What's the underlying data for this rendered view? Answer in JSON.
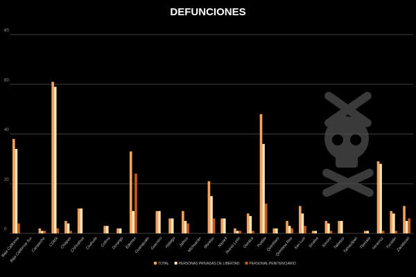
{
  "chart_data": {
    "type": "bar",
    "title": "DEFUNCIONES",
    "categories": [
      "Baja California",
      "Baja California Sur",
      "Campeche",
      "CDMX",
      "Chiapas",
      "Chihuahua",
      "Coahuila",
      "Colima",
      "Durango",
      "Edomex",
      "Guanajuato",
      "Guerrero",
      "Hidalgo",
      "Jalisco",
      "Michoacán",
      "Morelos",
      "Nayarit",
      "Nuevo León",
      "Oaxaca",
      "Puebla",
      "Querétaro",
      "Quintana Roo",
      "San Luis",
      "Sinaloa",
      "Sonora",
      "Tabasco",
      "Tamaulipas",
      "Tlaxcala",
      "Veracruz",
      "Yucatán",
      "Zacatecas"
    ],
    "series": [
      {
        "name": "TOTAL",
        "color": "#f5a25d",
        "values": [
          38,
          0,
          2,
          61,
          5,
          10,
          0,
          3,
          2,
          33,
          0,
          9,
          6,
          9,
          0,
          21,
          6,
          2,
          8,
          48,
          2,
          5,
          11,
          1,
          5,
          5,
          0,
          1,
          29,
          9,
          11
        ]
      },
      {
        "name": "PERSONAS PRIVADAS DE LIBERTAD",
        "color": "#ffe6b8",
        "values": [
          34,
          0,
          1,
          59,
          4,
          10,
          0,
          3,
          2,
          9,
          0,
          9,
          6,
          5,
          0,
          15,
          6,
          1,
          7,
          36,
          2,
          3,
          8,
          1,
          4,
          5,
          0,
          1,
          28,
          8,
          5
        ]
      },
      {
        "name": "PERSONAL PENITENCIARIO",
        "color": "#c75a1e",
        "values": [
          4,
          0,
          1,
          2,
          1,
          0,
          0,
          0,
          0,
          24,
          0,
          0,
          0,
          4,
          0,
          6,
          0,
          1,
          1,
          12,
          0,
          2,
          3,
          0,
          1,
          0,
          0,
          0,
          1,
          1,
          6
        ]
      }
    ],
    "ylim": [
      0,
      80
    ],
    "yticks": [
      0,
      20,
      40,
      60,
      80
    ],
    "grid": true
  }
}
